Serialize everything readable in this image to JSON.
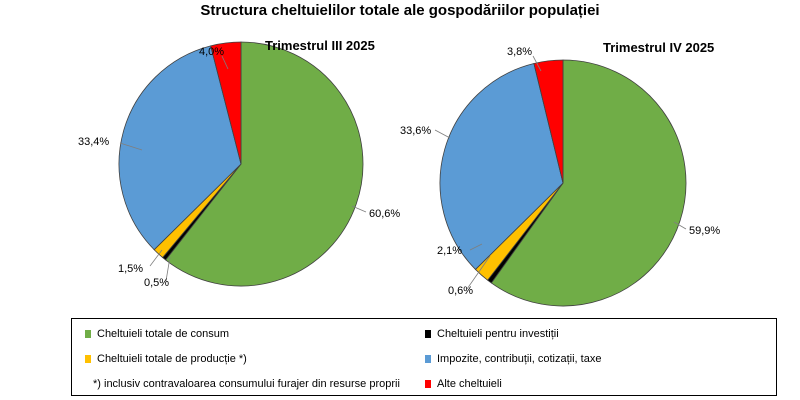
{
  "chart_data": {
    "type": "pie",
    "title": "Structura cheltuielilor totale ale gospodăriilor populației",
    "legend": {
      "position": "bottom",
      "items": [
        {
          "label": "Cheltuieli totale de consum",
          "color": "#70ad47"
        },
        {
          "label": "Cheltuieli pentru investiții",
          "color": "#000000"
        },
        {
          "label": "Cheltuieli totale de producție *)",
          "color": "#ffc000"
        },
        {
          "label": "Impozite, contribuții, cotizații, taxe",
          "color": "#5b9bd5"
        },
        {
          "label": "Alte cheltuieli",
          "color": "#ff0000"
        }
      ],
      "footnote": "*) inclusiv contravaloarea consumului furajer din resurse proprii"
    },
    "pies": [
      {
        "title": "Trimestrul  III 2025",
        "values": [
          60.6,
          0.5,
          1.5,
          33.4,
          4.0
        ],
        "labels": [
          "60,6%",
          "0,5%",
          "1,5%",
          "33,4%",
          "4,0%"
        ]
      },
      {
        "title": "Trimestrul  IV 2025",
        "values": [
          59.9,
          0.6,
          2.1,
          33.6,
          3.8
        ],
        "labels": [
          "59,9%",
          "0,6%",
          "2,1%",
          "33,6%",
          "3,8%"
        ]
      }
    ]
  }
}
